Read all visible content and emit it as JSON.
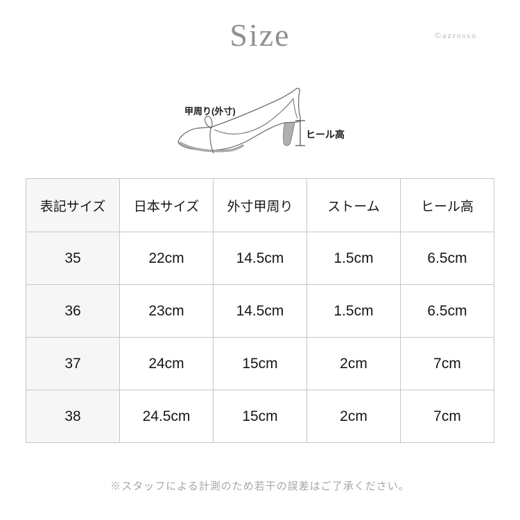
{
  "page": {
    "title": "Size",
    "watermark": "©azrosso",
    "note": "※スタッフによる計測のため若干の誤差はご了承ください。"
  },
  "diagram": {
    "labels": {
      "girth": "甲周り(外寸)",
      "heel_height": "ヒール高"
    }
  },
  "table": {
    "columns": [
      "表記サイズ",
      "日本サイズ",
      "外寸甲周り",
      "ストーム",
      "ヒール高"
    ],
    "rows": [
      [
        "35",
        "22cm",
        "14.5cm",
        "1.5cm",
        "6.5cm"
      ],
      [
        "36",
        "23cm",
        "14.5cm",
        "1.5cm",
        "6.5cm"
      ],
      [
        "37",
        "24cm",
        "15cm",
        "2cm",
        "7cm"
      ],
      [
        "38",
        "24.5cm",
        "15cm",
        "2cm",
        "7cm"
      ]
    ]
  },
  "colors": {
    "table_border": "#c6c6c6",
    "first_column_bg": "#f6f6f6",
    "title_gray": "#909090",
    "watermark_gray": "#b5b5b5",
    "note_gray": "#a6a6a6",
    "line_art": "#6e6e6e",
    "heel_fill": "#b0b0b0"
  }
}
